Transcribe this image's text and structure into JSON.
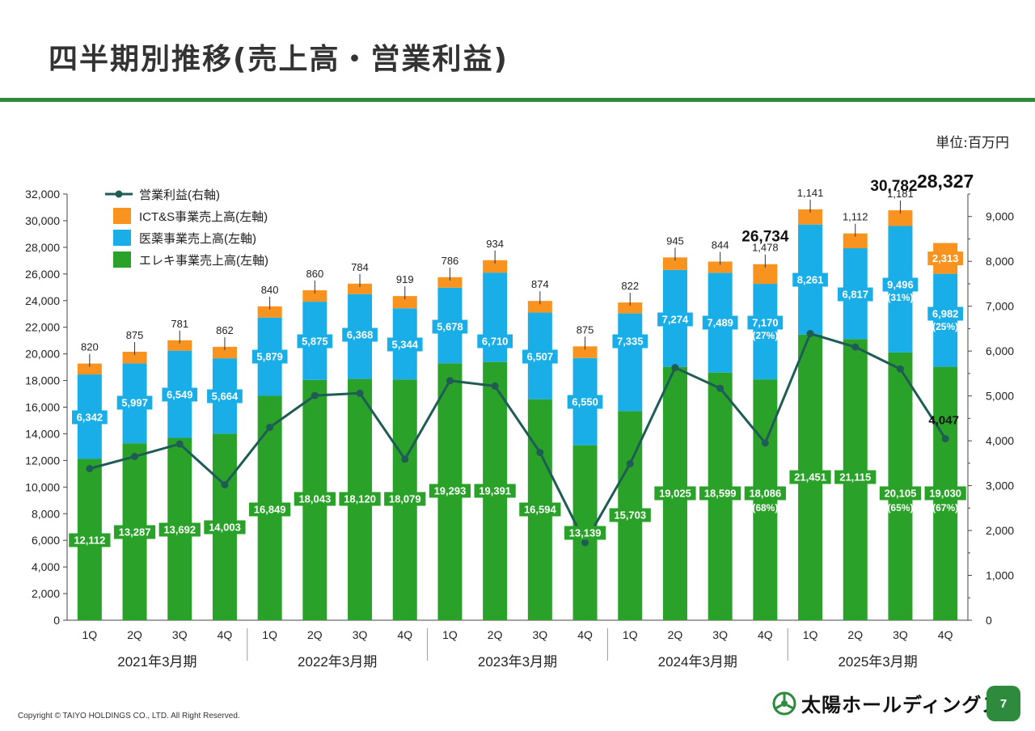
{
  "page": {
    "title": "四半期別推移(売上高・営業利益)",
    "unit": "単位:百万円",
    "copyright": "Copyright © TAIYO HOLDINGS CO., LTD.  All Right Reserved.",
    "company": "太陽ホールディングス",
    "page_number": "7"
  },
  "colors": {
    "elec": "#2aa22a",
    "pharma": "#1aaee8",
    "ict": "#f7931e",
    "profit_line": "#1f5c55",
    "accent": "#2e8b3e"
  },
  "chart_data": {
    "type": "bar",
    "stacked": true,
    "categories": [
      "1Q",
      "2Q",
      "3Q",
      "4Q",
      "1Q",
      "2Q",
      "3Q",
      "4Q",
      "1Q",
      "2Q",
      "3Q",
      "4Q",
      "1Q",
      "2Q",
      "3Q",
      "4Q",
      "1Q",
      "2Q",
      "3Q",
      "4Q"
    ],
    "groups": [
      "2021年3月期",
      "2022年3月期",
      "2023年3月期",
      "2024年3月期",
      "2025年3月期"
    ],
    "series": [
      {
        "name": "エレキ事業売上高(左軸)",
        "key": "elec",
        "values": [
          12112,
          13287,
          13692,
          14003,
          16849,
          18043,
          18120,
          18079,
          19293,
          19391,
          16594,
          13139,
          15703,
          19025,
          18599,
          18086,
          21451,
          21115,
          20105,
          19030
        ]
      },
      {
        "name": "医薬事業売上高(左軸)",
        "key": "pharma",
        "values": [
          6342,
          5997,
          6549,
          5664,
          5879,
          5875,
          6368,
          5344,
          5678,
          6710,
          6507,
          6550,
          7335,
          7274,
          7489,
          7170,
          8261,
          6817,
          9496,
          6982
        ]
      },
      {
        "name": "ICT&S事業売上高(左軸)",
        "key": "ict",
        "values": [
          820,
          875,
          781,
          862,
          840,
          860,
          784,
          919,
          786,
          934,
          874,
          875,
          822,
          945,
          844,
          1478,
          1141,
          1112,
          1181,
          2313
        ]
      },
      {
        "name": "営業利益(右軸)",
        "key": "profit",
        "axis": "right",
        "values": [
          3380,
          3650,
          3930,
          3020,
          4300,
          5010,
          5060,
          3590,
          5340,
          5220,
          3740,
          1730,
          3490,
          5630,
          5170,
          3950,
          6390,
          6090,
          5600,
          4047
        ]
      }
    ],
    "elec_share_labels": {
      "15": "(68%)",
      "18": "(65%)",
      "19": "(67%)"
    },
    "pharma_share_labels": {
      "15": "(27%)",
      "18": "(31%)",
      "19": "(25%)"
    },
    "total_labels": {
      "15": "26,734",
      "18": "30,782",
      "19": "28,327"
    },
    "profit_labels": {
      "19": "4,047"
    },
    "left_axis": {
      "min": 0,
      "max": 32000,
      "step": 2000,
      "ticks": [
        "0",
        "2,000",
        "4,000",
        "6,000",
        "8,000",
        "10,000",
        "12,000",
        "14,000",
        "16,000",
        "18,000",
        "20,000",
        "22,000",
        "24,000",
        "26,000",
        "28,000",
        "30,000",
        "32,000"
      ]
    },
    "right_axis": {
      "min": 0,
      "max": 9500,
      "step": 1000,
      "ticks": [
        "0",
        "1,000",
        "2,000",
        "3,000",
        "4,000",
        "5,000",
        "6,000",
        "7,000",
        "8,000",
        "9,000"
      ]
    },
    "legend_position": "top-left",
    "grid": false
  }
}
